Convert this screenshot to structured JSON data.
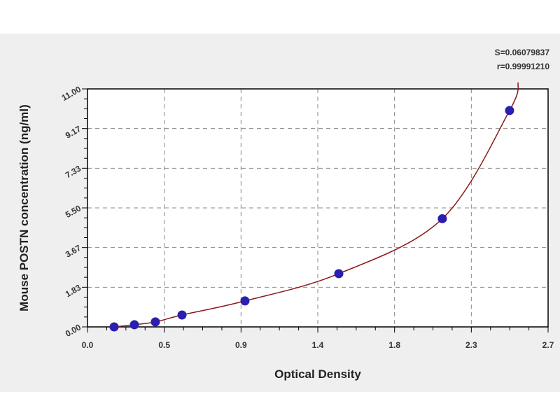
{
  "chart_data": {
    "type": "scatter",
    "title": "",
    "xlabel": "Optical Density",
    "ylabel": "Mouse POSTN concentration (ng/ml)",
    "xlim": [
      0,
      2.7
    ],
    "ylim": [
      0,
      11.0
    ],
    "x_ticks": [
      0,
      0.45,
      0.9,
      1.35,
      1.8,
      2.25,
      2.7
    ],
    "x_tick_labels": [
      "0.0",
      "0.5",
      "0.9",
      "1.4",
      "1.8",
      "2.3",
      "2.7"
    ],
    "y_ticks": [
      0,
      1.833,
      3.667,
      5.5,
      7.333,
      9.167,
      11.0
    ],
    "y_tick_labels": [
      "0.00",
      "1.83",
      "3.67",
      "5.50",
      "7.33",
      "9.17",
      "11.00"
    ],
    "grid": true,
    "points": {
      "x": [
        0.156,
        0.275,
        0.398,
        0.554,
        0.923,
        1.473,
        2.08,
        2.474
      ],
      "y": [
        0,
        0.1,
        0.23,
        0.55,
        1.2,
        2.46,
        5.0,
        10.0
      ]
    },
    "fit_curve": true,
    "annotations": [
      "S=0.06079837",
      "r=0.99991210"
    ],
    "colors": {
      "points": "#2a1fae",
      "curve": "#8b1a1a",
      "grid": "#888888",
      "background": "#efefef"
    }
  }
}
